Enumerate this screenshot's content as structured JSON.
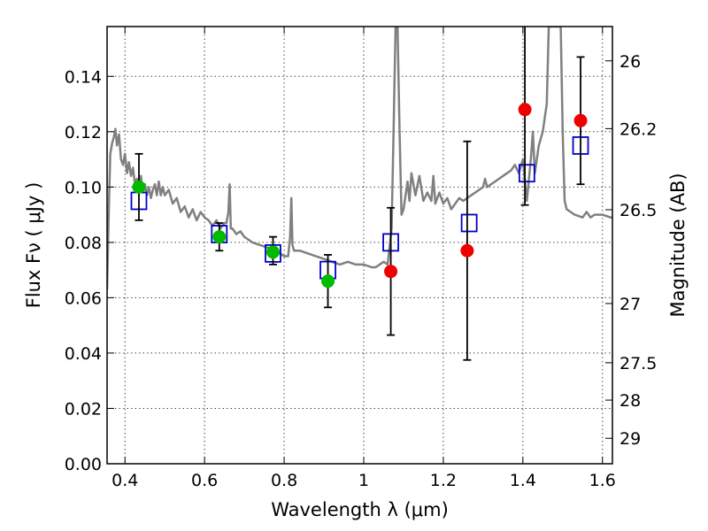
{
  "chart_data": {
    "type": "scatter",
    "xlabel": "Wavelength  λ (μm)",
    "ylabel": "Flux  Fν  ( μJy )",
    "y2label": "Magnitude (AB)",
    "xlim": [
      0.355,
      1.625
    ],
    "ylim": [
      0.0,
      0.158
    ],
    "grid": true,
    "x_ticks": [
      0.4,
      0.6,
      0.8,
      1.0,
      1.2,
      1.4,
      1.6
    ],
    "x_tick_labels": [
      "0.4",
      "0.6",
      "0.8",
      "1",
      "1.2",
      "1.4",
      "1.6"
    ],
    "y_ticks": [
      0.0,
      0.02,
      0.04,
      0.06,
      0.08,
      0.1,
      0.12,
      0.14
    ],
    "y_tick_labels": [
      "0.00",
      "0.02",
      "0.04",
      "0.06",
      "0.08",
      "0.10",
      "0.12",
      "0.14"
    ],
    "y2_ticks": [
      {
        "label": "26",
        "flux": 0.1456
      },
      {
        "label": "26.2",
        "flux": 0.1211
      },
      {
        "label": "26.5",
        "flux": 0.0918
      },
      {
        "label": "27",
        "flux": 0.0579
      },
      {
        "label": "27.5",
        "flux": 0.0365
      },
      {
        "label": "28",
        "flux": 0.023
      },
      {
        "label": "29",
        "flux": 0.0092
      }
    ],
    "model_spectrum": {
      "color": "#808080",
      "points": [
        [
          0.355,
          0.063
        ],
        [
          0.36,
          0.095
        ],
        [
          0.363,
          0.112
        ],
        [
          0.368,
          0.116
        ],
        [
          0.372,
          0.118
        ],
        [
          0.376,
          0.121
        ],
        [
          0.38,
          0.115
        ],
        [
          0.385,
          0.119
        ],
        [
          0.39,
          0.11
        ],
        [
          0.395,
          0.108
        ],
        [
          0.4,
          0.112
        ],
        [
          0.405,
          0.105
        ],
        [
          0.41,
          0.109
        ],
        [
          0.415,
          0.104
        ],
        [
          0.42,
          0.107
        ],
        [
          0.425,
          0.101
        ],
        [
          0.43,
          0.103
        ],
        [
          0.435,
          0.1
        ],
        [
          0.44,
          0.104
        ],
        [
          0.445,
          0.098
        ],
        [
          0.45,
          0.101
        ],
        [
          0.455,
          0.097
        ],
        [
          0.46,
          0.1
        ],
        [
          0.465,
          0.096
        ],
        [
          0.47,
          0.099
        ],
        [
          0.475,
          0.101
        ],
        [
          0.48,
          0.097
        ],
        [
          0.485,
          0.102
        ],
        [
          0.49,
          0.097
        ],
        [
          0.495,
          0.1
        ],
        [
          0.5,
          0.097
        ],
        [
          0.51,
          0.099
        ],
        [
          0.52,
          0.094
        ],
        [
          0.53,
          0.096
        ],
        [
          0.54,
          0.091
        ],
        [
          0.55,
          0.093
        ],
        [
          0.56,
          0.089
        ],
        [
          0.57,
          0.092
        ],
        [
          0.58,
          0.088
        ],
        [
          0.59,
          0.091
        ],
        [
          0.6,
          0.089
        ],
        [
          0.61,
          0.088
        ],
        [
          0.62,
          0.086
        ],
        [
          0.63,
          0.088
        ],
        [
          0.64,
          0.085
        ],
        [
          0.65,
          0.087
        ],
        [
          0.655,
          0.087
        ],
        [
          0.66,
          0.091
        ],
        [
          0.663,
          0.101
        ],
        [
          0.666,
          0.085
        ],
        [
          0.67,
          0.085
        ],
        [
          0.68,
          0.083
        ],
        [
          0.69,
          0.084
        ],
        [
          0.7,
          0.082
        ],
        [
          0.72,
          0.08
        ],
        [
          0.74,
          0.079
        ],
        [
          0.76,
          0.078
        ],
        [
          0.78,
          0.077
        ],
        [
          0.8,
          0.075
        ],
        [
          0.81,
          0.075
        ],
        [
          0.815,
          0.082
        ],
        [
          0.818,
          0.096
        ],
        [
          0.821,
          0.079
        ],
        [
          0.825,
          0.077
        ],
        [
          0.84,
          0.077
        ],
        [
          0.86,
          0.076
        ],
        [
          0.88,
          0.075
        ],
        [
          0.9,
          0.074
        ],
        [
          0.92,
          0.073
        ],
        [
          0.94,
          0.072
        ],
        [
          0.96,
          0.073
        ],
        [
          0.98,
          0.072
        ],
        [
          1.0,
          0.072
        ],
        [
          1.02,
          0.071
        ],
        [
          1.03,
          0.071
        ],
        [
          1.04,
          0.072
        ],
        [
          1.05,
          0.073
        ],
        [
          1.06,
          0.072
        ],
        [
          1.07,
          0.085
        ],
        [
          1.075,
          0.12
        ],
        [
          1.08,
          0.158
        ],
        [
          1.085,
          0.158
        ],
        [
          1.09,
          0.12
        ],
        [
          1.095,
          0.09
        ],
        [
          1.1,
          0.092
        ],
        [
          1.11,
          0.102
        ],
        [
          1.115,
          0.095
        ],
        [
          1.12,
          0.105
        ],
        [
          1.13,
          0.097
        ],
        [
          1.14,
          0.104
        ],
        [
          1.15,
          0.095
        ],
        [
          1.16,
          0.098
        ],
        [
          1.17,
          0.095
        ],
        [
          1.175,
          0.104
        ],
        [
          1.18,
          0.094
        ],
        [
          1.19,
          0.098
        ],
        [
          1.2,
          0.094
        ],
        [
          1.21,
          0.096
        ],
        [
          1.22,
          0.092
        ],
        [
          1.23,
          0.094
        ],
        [
          1.24,
          0.096
        ],
        [
          1.25,
          0.095
        ],
        [
          1.26,
          0.096
        ],
        [
          1.27,
          0.097
        ],
        [
          1.28,
          0.098
        ],
        [
          1.29,
          0.099
        ],
        [
          1.3,
          0.1
        ],
        [
          1.305,
          0.103
        ],
        [
          1.31,
          0.1
        ],
        [
          1.32,
          0.101
        ],
        [
          1.33,
          0.102
        ],
        [
          1.34,
          0.103
        ],
        [
          1.35,
          0.104
        ],
        [
          1.36,
          0.105
        ],
        [
          1.37,
          0.106
        ],
        [
          1.38,
          0.108
        ],
        [
          1.39,
          0.105
        ],
        [
          1.4,
          0.11
        ],
        [
          1.41,
          0.095
        ],
        [
          1.42,
          0.11
        ],
        [
          1.425,
          0.12
        ],
        [
          1.43,
          0.105
        ],
        [
          1.44,
          0.115
        ],
        [
          1.45,
          0.12
        ],
        [
          1.46,
          0.13
        ],
        [
          1.465,
          0.158
        ],
        [
          1.495,
          0.158
        ],
        [
          1.5,
          0.12
        ],
        [
          1.505,
          0.095
        ],
        [
          1.51,
          0.092
        ],
        [
          1.53,
          0.09
        ],
        [
          1.55,
          0.089
        ],
        [
          1.56,
          0.091
        ],
        [
          1.57,
          0.089
        ],
        [
          1.58,
          0.09
        ],
        [
          1.6,
          0.09
        ],
        [
          1.62,
          0.089
        ],
        [
          1.625,
          0.089
        ]
      ]
    },
    "series": [
      {
        "marker": "square-open",
        "color": "#0000cc",
        "points": [
          {
            "x": 0.435,
            "y": 0.095
          },
          {
            "x": 0.637,
            "y": 0.083
          },
          {
            "x": 0.772,
            "y": 0.076
          },
          {
            "x": 0.91,
            "y": 0.07
          },
          {
            "x": 1.068,
            "y": 0.08
          },
          {
            "x": 1.265,
            "y": 0.087
          },
          {
            "x": 1.41,
            "y": 0.105
          },
          {
            "x": 1.545,
            "y": 0.115
          }
        ]
      },
      {
        "marker": "circle",
        "color": "#00bb00",
        "points": [
          {
            "x": 0.435,
            "y": 0.1,
            "err_low": 0.088,
            "err_high": 0.112
          },
          {
            "x": 0.637,
            "y": 0.082,
            "err_low": 0.077,
            "err_high": 0.087
          },
          {
            "x": 0.772,
            "y": 0.0765,
            "err_low": 0.072,
            "err_high": 0.082
          },
          {
            "x": 0.91,
            "y": 0.066,
            "err_low": 0.0565,
            "err_high": 0.0755
          }
        ]
      },
      {
        "marker": "circle",
        "color": "#ee0000",
        "points": [
          {
            "x": 1.068,
            "y": 0.0695,
            "err_low": 0.0465,
            "err_high": 0.0925
          },
          {
            "x": 1.26,
            "y": 0.077,
            "err_low": 0.0375,
            "err_high": 0.1165
          },
          {
            "x": 1.405,
            "y": 0.128,
            "err_low": 0.0935,
            "err_high": 0.158
          },
          {
            "x": 1.545,
            "y": 0.124,
            "err_low": 0.101,
            "err_high": 0.147
          }
        ]
      }
    ]
  }
}
